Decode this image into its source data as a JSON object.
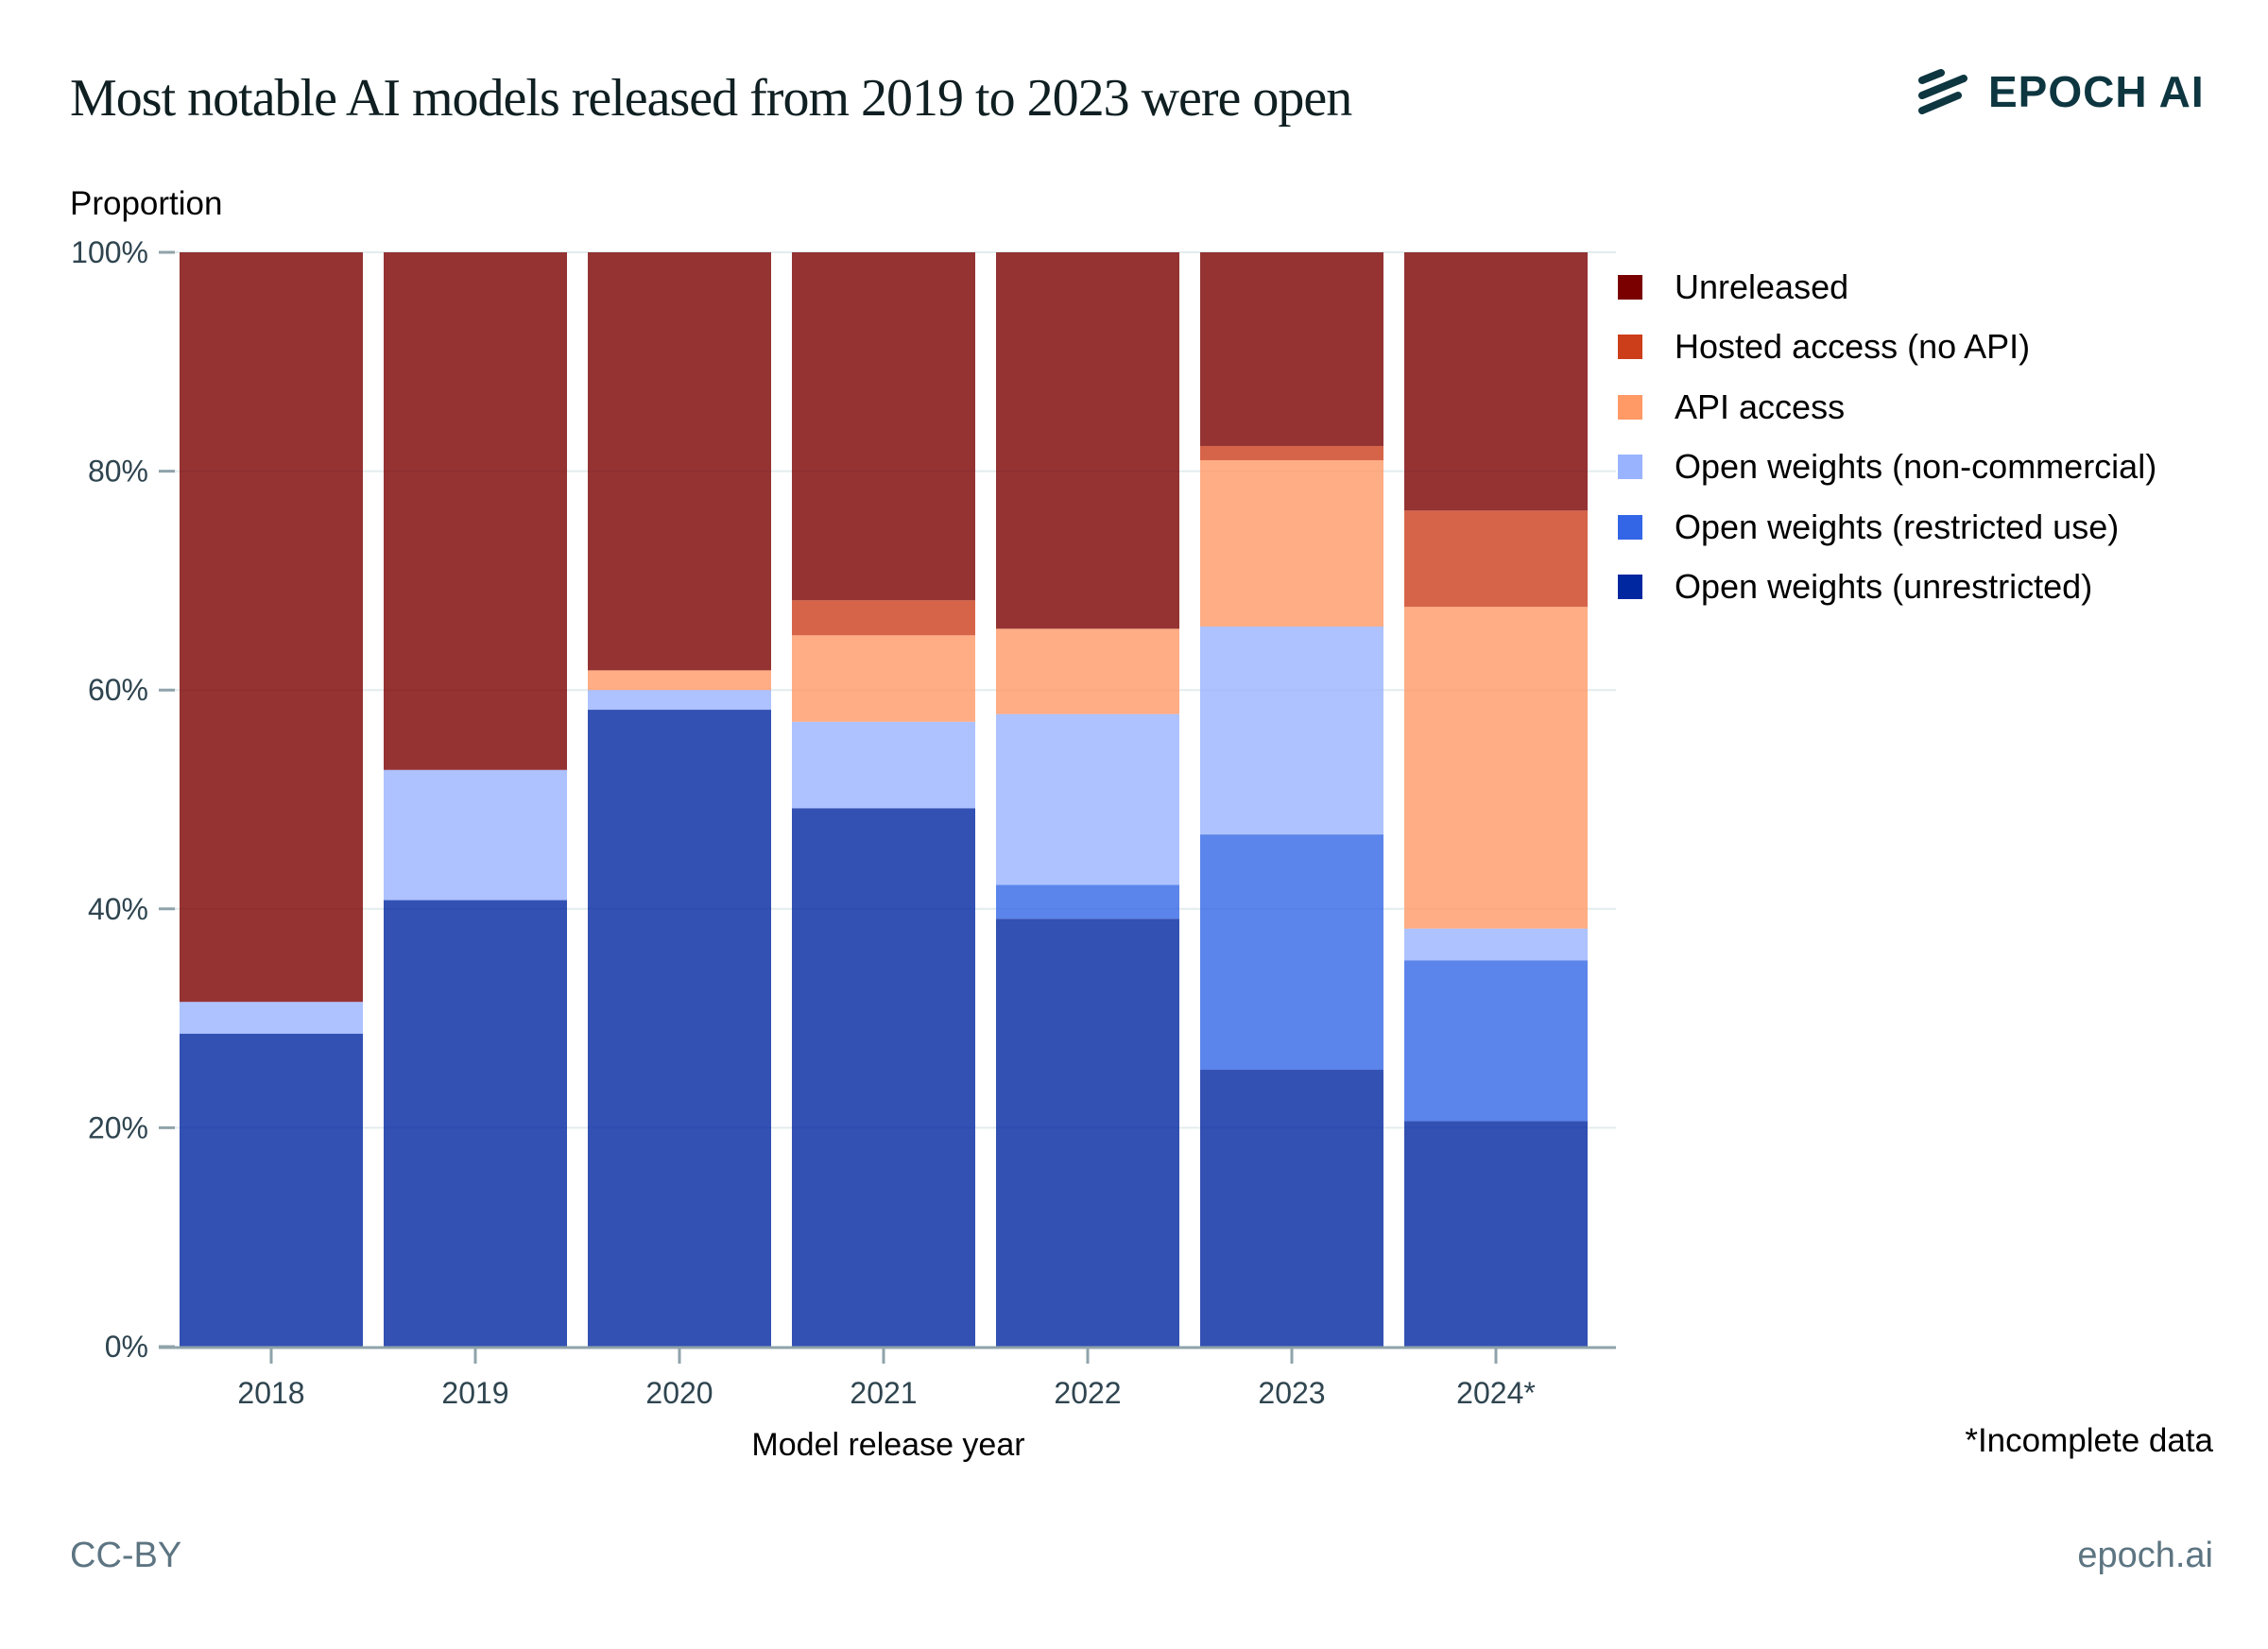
{
  "header": {
    "title": "Most notable AI models released from 2019 to 2023 were open",
    "logo_text": "EPOCH AI"
  },
  "footer": {
    "license": "CC-BY",
    "site": "epoch.ai",
    "note": "*Incomplete data"
  },
  "chart_data": {
    "type": "bar",
    "stacked": true,
    "title": "Most notable AI models released from 2019 to 2023 were open",
    "xlabel": "Model release year",
    "ylabel": "Proportion",
    "ylim": [
      0,
      100
    ],
    "yticks": [
      "0%",
      "20%",
      "40%",
      "60%",
      "80%",
      "100%"
    ],
    "ytick_values": [
      0,
      20,
      40,
      60,
      80,
      100
    ],
    "grid": true,
    "legend_position": "right",
    "categories": [
      "2018",
      "2019",
      "2020",
      "2021",
      "2022",
      "2023",
      "2024*"
    ],
    "series": [
      {
        "name": "Open weights (unrestricted)",
        "color": "#0026a0",
        "values": [
          28.6,
          40.8,
          58.2,
          49.2,
          39.1,
          25.3,
          20.6
        ]
      },
      {
        "name": "Open weights (restricted use)",
        "color": "#3366e6",
        "values": [
          0,
          0,
          0,
          0,
          3.1,
          21.5,
          14.7
        ]
      },
      {
        "name": "Open weights (non-commercial)",
        "color": "#99b3ff",
        "values": [
          2.9,
          11.9,
          1.8,
          7.9,
          15.6,
          19.0,
          2.9
        ]
      },
      {
        "name": "API access",
        "color": "#ff9966",
        "values": [
          0,
          0,
          1.8,
          7.9,
          7.8,
          15.2,
          29.4
        ]
      },
      {
        "name": "Hosted access (no API)",
        "color": "#cc3d1a",
        "values": [
          0,
          0,
          0,
          3.2,
          0,
          1.3,
          8.8
        ]
      },
      {
        "name": "Unreleased",
        "color": "#7a0000",
        "values": [
          68.5,
          47.3,
          38.2,
          31.8,
          34.4,
          17.7,
          23.6
        ]
      }
    ],
    "legend_order": [
      "Unreleased",
      "Hosted access (no API)",
      "API access",
      "Open weights (non-commercial)",
      "Open weights (restricted use)",
      "Open weights (unrestricted)"
    ]
  }
}
